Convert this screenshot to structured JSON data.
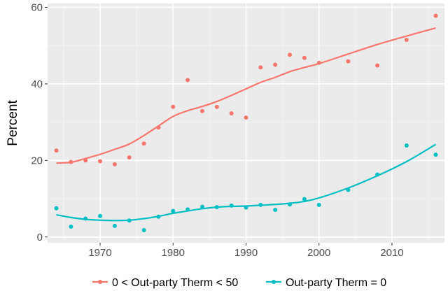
{
  "chart_data": {
    "type": "scatter",
    "title": "",
    "xlabel": "",
    "ylabel": "Percent",
    "xlim": [
      1962.8,
      2017.2
    ],
    "ylim": [
      -1.5,
      61
    ],
    "x_ticks": [
      1970,
      1980,
      1990,
      2000,
      2010
    ],
    "y_ticks": [
      0,
      20,
      40,
      60
    ],
    "grid": true,
    "legend_position": "bottom",
    "series": [
      {
        "name": "0 < Out-party Therm < 50",
        "color": "#f8766d",
        "points": [
          [
            1964,
            22.6
          ],
          [
            1966,
            19.6
          ],
          [
            1968,
            20.0
          ],
          [
            1970,
            19.8
          ],
          [
            1972,
            19.0
          ],
          [
            1974,
            20.8
          ],
          [
            1976,
            24.4
          ],
          [
            1978,
            28.6
          ],
          [
            1980,
            34.0
          ],
          [
            1982,
            41.0
          ],
          [
            1984,
            32.9
          ],
          [
            1986,
            34.0
          ],
          [
            1988,
            32.3
          ],
          [
            1990,
            31.2
          ],
          [
            1992,
            44.3
          ],
          [
            1994,
            45.0
          ],
          [
            1996,
            47.6
          ],
          [
            1998,
            46.8
          ],
          [
            2000,
            45.5
          ],
          [
            2004,
            45.9
          ],
          [
            2008,
            44.8
          ],
          [
            2012,
            51.5
          ],
          [
            2016,
            57.8
          ]
        ],
        "smooth": [
          [
            1964,
            19.3
          ],
          [
            1966,
            19.5
          ],
          [
            1968,
            20.5
          ],
          [
            1970,
            21.6
          ],
          [
            1972,
            22.9
          ],
          [
            1974,
            24.3
          ],
          [
            1976,
            26.5
          ],
          [
            1978,
            29.0
          ],
          [
            1980,
            31.5
          ],
          [
            1982,
            33.0
          ],
          [
            1984,
            34.1
          ],
          [
            1986,
            35.4
          ],
          [
            1988,
            37.0
          ],
          [
            1990,
            38.7
          ],
          [
            1992,
            40.4
          ],
          [
            1994,
            41.7
          ],
          [
            1996,
            43.2
          ],
          [
            1998,
            44.3
          ],
          [
            2000,
            45.3
          ],
          [
            2004,
            47.8
          ],
          [
            2008,
            50.3
          ],
          [
            2012,
            52.5
          ],
          [
            2016,
            54.6
          ]
        ]
      },
      {
        "name": "Out-party Therm = 0",
        "color": "#00bfc4",
        "points": [
          [
            1964,
            7.5
          ],
          [
            1966,
            2.7
          ],
          [
            1968,
            4.8
          ],
          [
            1970,
            5.5
          ],
          [
            1972,
            2.9
          ],
          [
            1974,
            4.3
          ],
          [
            1976,
            1.8
          ],
          [
            1978,
            5.3
          ],
          [
            1980,
            6.8
          ],
          [
            1982,
            7.2
          ],
          [
            1984,
            7.9
          ],
          [
            1986,
            7.8
          ],
          [
            1988,
            8.2
          ],
          [
            1990,
            7.7
          ],
          [
            1992,
            8.4
          ],
          [
            1994,
            7.1
          ],
          [
            1996,
            8.5
          ],
          [
            1998,
            9.9
          ],
          [
            2000,
            8.4
          ],
          [
            2004,
            12.3
          ],
          [
            2008,
            16.3
          ],
          [
            2012,
            23.9
          ],
          [
            2016,
            21.5
          ]
        ],
        "smooth": [
          [
            1964,
            5.8
          ],
          [
            1966,
            5.1
          ],
          [
            1968,
            4.6
          ],
          [
            1970,
            4.4
          ],
          [
            1972,
            4.3
          ],
          [
            1974,
            4.4
          ],
          [
            1976,
            4.8
          ],
          [
            1978,
            5.4
          ],
          [
            1980,
            6.2
          ],
          [
            1982,
            6.8
          ],
          [
            1984,
            7.4
          ],
          [
            1986,
            7.8
          ],
          [
            1988,
            8.0
          ],
          [
            1990,
            8.1
          ],
          [
            1992,
            8.3
          ],
          [
            1994,
            8.5
          ],
          [
            1996,
            8.8
          ],
          [
            1998,
            9.3
          ],
          [
            2000,
            10.2
          ],
          [
            2004,
            12.8
          ],
          [
            2008,
            16.0
          ],
          [
            2012,
            19.7
          ],
          [
            2016,
            24.2
          ]
        ]
      }
    ]
  }
}
